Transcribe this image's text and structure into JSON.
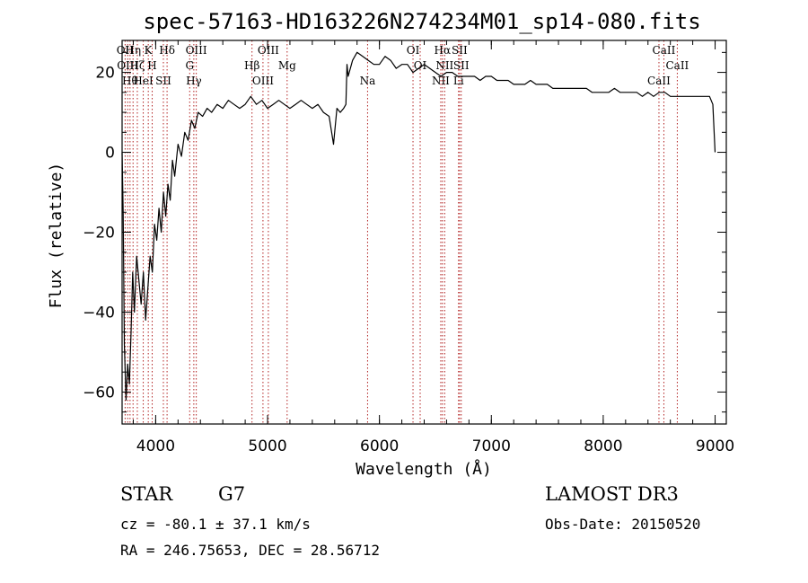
{
  "chart_data": {
    "type": "line",
    "title": "spec-57163-HD163226N274234M01_sp14-080.fits",
    "xlabel": "Wavelength (Å)",
    "ylabel": "Flux (relative)",
    "xlim": [
      3700,
      9100
    ],
    "ylim": [
      -68,
      28
    ],
    "xticks": [
      4000,
      5000,
      6000,
      7000,
      8000,
      9000
    ],
    "yticks": [
      -60,
      -40,
      -20,
      0,
      20
    ],
    "grid": false,
    "series": [
      {
        "x": [
          3700,
          3710,
          3720,
          3735,
          3750,
          3765,
          3780,
          3795,
          3810,
          3830,
          3850,
          3870,
          3890,
          3910,
          3930,
          3950,
          3970,
          3990,
          4010,
          4030,
          4050,
          4070,
          4090,
          4110,
          4130,
          4150,
          4170,
          4200,
          4230,
          4260,
          4290,
          4320,
          4350,
          4380,
          4420,
          4460,
          4500,
          4550,
          4600,
          4650,
          4700,
          4750,
          4800,
          4850,
          4900,
          4950,
          5000,
          5050,
          5100,
          5150,
          5200,
          5250,
          5300,
          5350,
          5400,
          5450,
          5500,
          5550,
          5590,
          5620,
          5650,
          5680,
          5700,
          5710,
          5720,
          5760,
          5800,
          5850,
          5900,
          5950,
          6000,
          6050,
          6100,
          6150,
          6200,
          6250,
          6300,
          6350,
          6400,
          6450,
          6500,
          6550,
          6600,
          6650,
          6700,
          6750,
          6800,
          6850,
          6900,
          6950,
          7000,
          7050,
          7100,
          7150,
          7200,
          7250,
          7300,
          7350,
          7400,
          7450,
          7500,
          7550,
          7600,
          7650,
          7700,
          7750,
          7800,
          7850,
          7900,
          7950,
          8000,
          8050,
          8100,
          8150,
          8200,
          8250,
          8300,
          8350,
          8400,
          8450,
          8500,
          8550,
          8600,
          8650,
          8700,
          8750,
          8800,
          8850,
          8900,
          8950,
          8980,
          9000
        ],
        "y": [
          0,
          -15,
          -48,
          -62,
          -53,
          -58,
          -45,
          -30,
          -40,
          -26,
          -32,
          -38,
          -30,
          -42,
          -34,
          -26,
          -30,
          -18,
          -22,
          -14,
          -20,
          -10,
          -16,
          -8,
          -12,
          -2,
          -6,
          2,
          -1,
          5,
          3,
          8,
          6,
          10,
          9,
          11,
          10,
          12,
          11,
          13,
          12,
          11,
          12,
          14,
          12,
          13,
          11,
          12,
          13,
          12,
          11,
          12,
          13,
          12,
          11,
          12,
          10,
          9,
          2,
          11,
          10,
          11,
          12,
          22,
          19,
          23,
          25,
          24,
          23,
          22,
          22,
          24,
          23,
          21,
          22,
          22,
          20,
          21,
          22,
          21,
          20,
          19,
          20,
          20,
          19,
          19,
          19,
          19,
          18,
          19,
          19,
          18,
          18,
          18,
          17,
          17,
          17,
          18,
          17,
          17,
          17,
          16,
          16,
          16,
          16,
          16,
          16,
          16,
          15,
          15,
          15,
          15,
          16,
          15,
          15,
          15,
          15,
          14,
          15,
          14,
          15,
          15,
          14,
          14,
          14,
          14,
          14,
          14,
          14,
          14,
          12,
          0
        ]
      }
    ],
    "line_markers": [
      {
        "wavelength": 3727,
        "label": "OII"
      },
      {
        "wavelength": 3750,
        "label": "OIII"
      },
      {
        "wavelength": 3771,
        "label": "Hθ"
      },
      {
        "wavelength": 3798,
        "label": "Hη"
      },
      {
        "wavelength": 3836,
        "label": "Hζ"
      },
      {
        "wavelength": 3889,
        "label": "HeI"
      },
      {
        "wavelength": 3934,
        "label": "K"
      },
      {
        "wavelength": 3969,
        "label": "H"
      },
      {
        "wavelength": 4069,
        "label": "SII"
      },
      {
        "wavelength": 4102,
        "label": "Hδ"
      },
      {
        "wavelength": 4304,
        "label": "G"
      },
      {
        "wavelength": 4341,
        "label": "Hγ"
      },
      {
        "wavelength": 4363,
        "label": "OIII"
      },
      {
        "wavelength": 4861,
        "label": "Hβ"
      },
      {
        "wavelength": 4959,
        "label": "OIII"
      },
      {
        "wavelength": 5007,
        "label": "OIII"
      },
      {
        "wavelength": 5175,
        "label": "Mg"
      },
      {
        "wavelength": 5894,
        "label": "Na"
      },
      {
        "wavelength": 6300,
        "label": "OI"
      },
      {
        "wavelength": 6364,
        "label": "OI"
      },
      {
        "wavelength": 6548,
        "label": "NII"
      },
      {
        "wavelength": 6563,
        "label": "Hα"
      },
      {
        "wavelength": 6583,
        "label": "NII"
      },
      {
        "wavelength": 6707,
        "label": "Li"
      },
      {
        "wavelength": 6716,
        "label": "SII"
      },
      {
        "wavelength": 6731,
        "label": "SII"
      },
      {
        "wavelength": 8498,
        "label": "CaII"
      },
      {
        "wavelength": 8542,
        "label": "CaII"
      },
      {
        "wavelength": 8662,
        "label": "CaII"
      }
    ]
  },
  "info": {
    "object_class": "STAR",
    "subclass": "G7",
    "redshift_line": "cz = -80.1 ± 37.1 km/s",
    "coords_line": "RA = 246.75653, DEC =  28.56712",
    "survey": "LAMOST DR3",
    "obs_date_line": "Obs-Date: 20150520"
  },
  "colors": {
    "line_marker": "#b22222",
    "spectrum": "#000000",
    "axes": "#000000"
  }
}
